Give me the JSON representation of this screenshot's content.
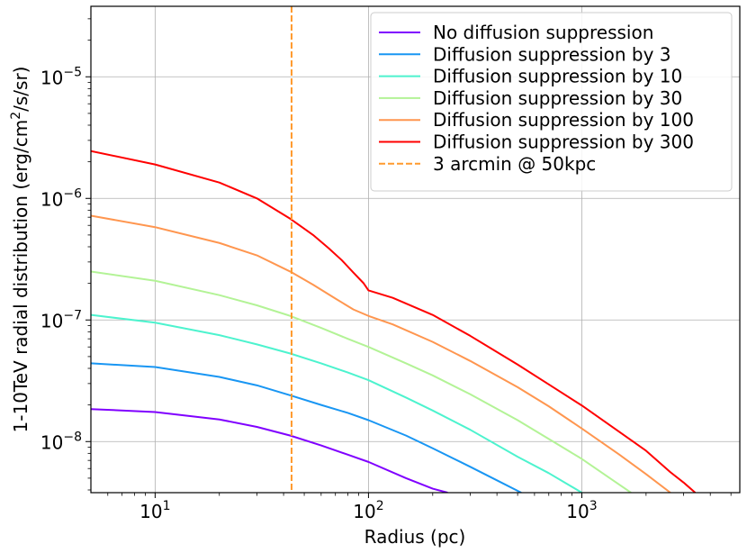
{
  "chart_data": {
    "type": "line",
    "xscale": "log",
    "yscale": "log",
    "xlabel": "Radius (pc)",
    "ylabel_prefix": "1-10TeV radial distribution (erg/cm",
    "ylabel_sup": "2",
    "ylabel_suffix": "/s/sr)",
    "xlim": [
      5,
      5500
    ],
    "ylim": [
      3.8e-09,
      3.8e-05
    ],
    "x_ticks": [
      {
        "value": 10,
        "base": "10",
        "exp": "1"
      },
      {
        "value": 100,
        "base": "10",
        "exp": "2"
      },
      {
        "value": 1000,
        "base": "10",
        "exp": "3"
      }
    ],
    "y_ticks": [
      {
        "value": 1e-08,
        "base": "10",
        "exp": "−8"
      },
      {
        "value": 1e-07,
        "base": "10",
        "exp": "−7"
      },
      {
        "value": 1e-06,
        "base": "10",
        "exp": "−6"
      },
      {
        "value": 1e-05,
        "base": "10",
        "exp": "−5"
      }
    ],
    "grid": true,
    "legend_position": "top-right",
    "series": [
      {
        "name": "No diffusion suppression",
        "color": "#8000ff",
        "style": "solid",
        "points": [
          [
            5,
            1.85e-08
          ],
          [
            10,
            1.75e-08
          ],
          [
            20,
            1.52e-08
          ],
          [
            30,
            1.32e-08
          ],
          [
            43,
            1.12e-08
          ],
          [
            60,
            9.3e-09
          ],
          [
            80,
            7.8e-09
          ],
          [
            100,
            6.8e-09
          ],
          [
            150,
            5e-09
          ],
          [
            200,
            4.1e-09
          ],
          [
            235,
            3.8e-09
          ]
        ]
      },
      {
        "name": "Diffusion suppression by 3",
        "color": "#1996f3",
        "style": "solid",
        "points": [
          [
            5,
            4.4e-08
          ],
          [
            10,
            4.1e-08
          ],
          [
            20,
            3.4e-08
          ],
          [
            30,
            2.9e-08
          ],
          [
            43,
            2.4e-08
          ],
          [
            60,
            2e-08
          ],
          [
            80,
            1.72e-08
          ],
          [
            100,
            1.5e-08
          ],
          [
            150,
            1.12e-08
          ],
          [
            200,
            8.8e-09
          ],
          [
            300,
            6.2e-09
          ],
          [
            400,
            4.8e-09
          ],
          [
            520,
            3.8e-09
          ]
        ]
      },
      {
        "name": "Diffusion suppression by 10",
        "color": "#4df3ce",
        "style": "solid",
        "points": [
          [
            5,
            1.1e-07
          ],
          [
            10,
            9.5e-08
          ],
          [
            20,
            7.5e-08
          ],
          [
            30,
            6.3e-08
          ],
          [
            43,
            5.3e-08
          ],
          [
            60,
            4.4e-08
          ],
          [
            80,
            3.7e-08
          ],
          [
            100,
            3.2e-08
          ],
          [
            150,
            2.3e-08
          ],
          [
            200,
            1.8e-08
          ],
          [
            300,
            1.25e-08
          ],
          [
            500,
            7.5e-09
          ],
          [
            700,
            5.5e-09
          ],
          [
            1000,
            3.8e-09
          ]
        ]
      },
      {
        "name": "Diffusion suppression by 30",
        "color": "#b3f396",
        "style": "solid",
        "points": [
          [
            5,
            2.5e-07
          ],
          [
            10,
            2.1e-07
          ],
          [
            20,
            1.6e-07
          ],
          [
            30,
            1.32e-07
          ],
          [
            43,
            1.08e-07
          ],
          [
            60,
            8.6e-08
          ],
          [
            80,
            7e-08
          ],
          [
            100,
            6e-08
          ],
          [
            150,
            4.4e-08
          ],
          [
            200,
            3.5e-08
          ],
          [
            300,
            2.45e-08
          ],
          [
            500,
            1.5e-08
          ],
          [
            700,
            1.05e-08
          ],
          [
            1000,
            7.2e-09
          ],
          [
            1400,
            4.8e-09
          ],
          [
            1700,
            3.8e-09
          ]
        ]
      },
      {
        "name": "Diffusion suppression by 100",
        "color": "#ff964f",
        "style": "solid",
        "points": [
          [
            5,
            7.2e-07
          ],
          [
            10,
            5.8e-07
          ],
          [
            20,
            4.3e-07
          ],
          [
            30,
            3.4e-07
          ],
          [
            43,
            2.5e-07
          ],
          [
            55,
            1.95e-07
          ],
          [
            70,
            1.5e-07
          ],
          [
            85,
            1.22e-07
          ],
          [
            100,
            1.08e-07
          ],
          [
            130,
            9.2e-08
          ],
          [
            200,
            6.6e-08
          ],
          [
            300,
            4.6e-08
          ],
          [
            500,
            2.8e-08
          ],
          [
            700,
            1.95e-08
          ],
          [
            1000,
            1.28e-08
          ],
          [
            1500,
            7.8e-09
          ],
          [
            2000,
            5.4e-09
          ],
          [
            2600,
            3.8e-09
          ]
        ]
      },
      {
        "name": "Diffusion suppression by 300",
        "color": "#ff0000",
        "style": "solid",
        "points": [
          [
            5,
            2.45e-06
          ],
          [
            10,
            1.9e-06
          ],
          [
            20,
            1.35e-06
          ],
          [
            30,
            1e-06
          ],
          [
            43,
            6.8e-07
          ],
          [
            55,
            5e-07
          ],
          [
            65,
            3.9e-07
          ],
          [
            75,
            3.1e-07
          ],
          [
            85,
            2.45e-07
          ],
          [
            95,
            2e-07
          ],
          [
            100,
            1.75e-07
          ],
          [
            130,
            1.52e-07
          ],
          [
            200,
            1.1e-07
          ],
          [
            300,
            7.4e-08
          ],
          [
            500,
            4.3e-08
          ],
          [
            700,
            2.95e-08
          ],
          [
            1000,
            1.98e-08
          ],
          [
            1500,
            1.2e-08
          ],
          [
            2000,
            8.4e-09
          ],
          [
            2600,
            5.6e-09
          ],
          [
            3000,
            4.6e-09
          ],
          [
            3400,
            3.8e-09
          ]
        ]
      },
      {
        "name": "3 arcmin @ 50kpc",
        "color": "#ff9a2e",
        "style": "dashed",
        "vline_x": 43.6
      }
    ]
  }
}
